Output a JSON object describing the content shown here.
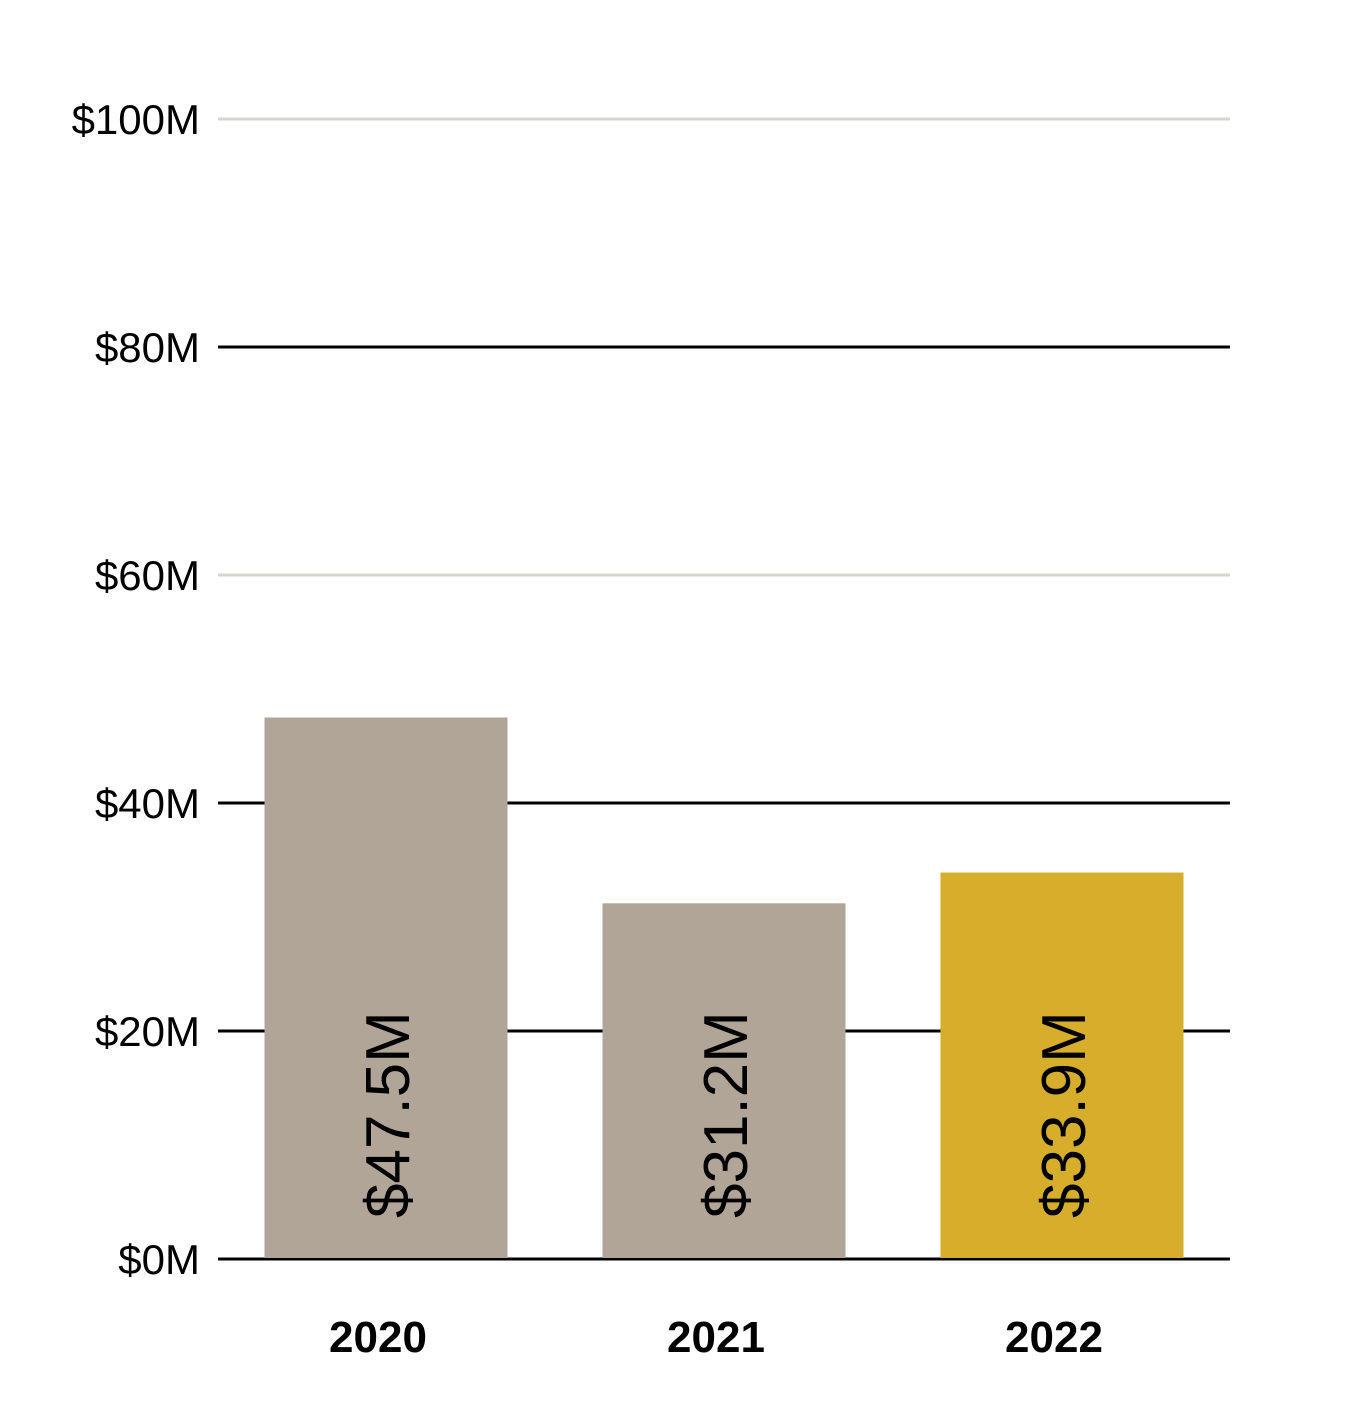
{
  "chart_data": {
    "type": "bar",
    "categories": [
      "2020",
      "2021",
      "2022"
    ],
    "values": [
      47.5,
      31.2,
      33.9
    ],
    "data_labels": [
      "$47.5M",
      "$31.2M",
      "$33.9M"
    ],
    "ylim": [
      0,
      100
    ],
    "yticks": [
      0,
      20,
      40,
      60,
      80,
      100
    ],
    "ytick_labels": [
      "$0M",
      "$20M",
      "$40M",
      "$60M",
      "$80M",
      "$100M"
    ],
    "title": "",
    "xlabel": "",
    "ylabel": "",
    "grid": true,
    "colors": {
      "bar": "#b1a598",
      "highlight": "#d6ae2b",
      "grid_dark": "#000000",
      "grid_light": "#d9d3cd"
    },
    "highlight_index": 2
  }
}
